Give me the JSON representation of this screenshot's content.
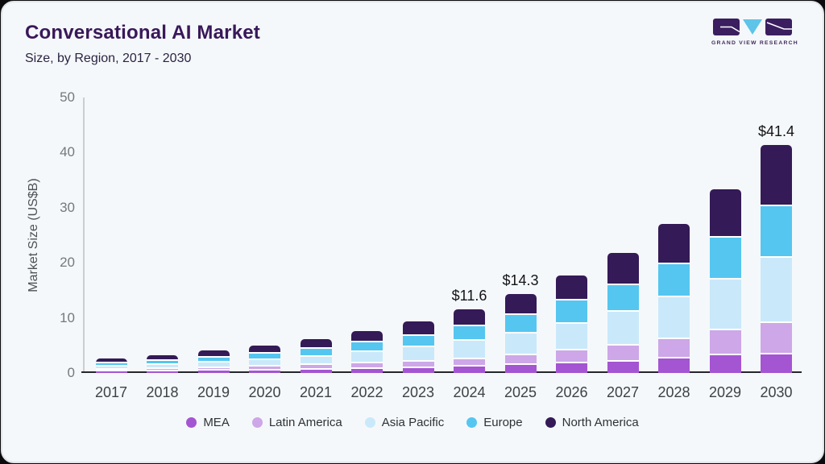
{
  "header": {
    "title": "Conversational AI Market",
    "subtitle": "Size, by Region, 2017 - 2030"
  },
  "logo": {
    "caption": "GRAND VIEW RESEARCH",
    "mark_color": "#3a1e5f",
    "v_color": "#5ec4e8"
  },
  "chart_data": {
    "type": "bar",
    "stacked": true,
    "title": "Conversational AI Market",
    "subtitle": "Size, by Region, 2017 - 2030",
    "xlabel": "",
    "ylabel": "Market Size (US$B)",
    "ylim": [
      0,
      50
    ],
    "yticks": [
      0,
      10,
      20,
      30,
      40,
      50
    ],
    "grid": false,
    "legend_position": "bottom",
    "categories": [
      "2017",
      "2018",
      "2019",
      "2020",
      "2021",
      "2022",
      "2023",
      "2024",
      "2025",
      "2026",
      "2027",
      "2028",
      "2029",
      "2030"
    ],
    "totals": [
      2.6,
      3.2,
      4.1,
      5.0,
      6.2,
      7.6,
      9.4,
      11.6,
      14.3,
      17.7,
      21.8,
      27.0,
      33.4,
      41.4
    ],
    "bar_labels": [
      "",
      "",
      "",
      "",
      "",
      "",
      "",
      "$11.6",
      "$14.3",
      "",
      "",
      "",
      "",
      "$41.4"
    ],
    "series": [
      {
        "name": "MEA",
        "color": "#a455d2",
        "values": [
          0.25,
          0.3,
          0.4,
          0.5,
          0.6,
          0.8,
          0.9,
          1.2,
          1.4,
          1.7,
          2.1,
          2.6,
          3.2,
          3.4
        ]
      },
      {
        "name": "Latin America",
        "color": "#cda7e8",
        "values": [
          0.35,
          0.45,
          0.55,
          0.65,
          0.8,
          0.9,
          1.2,
          1.3,
          1.8,
          2.4,
          2.9,
          3.6,
          4.5,
          5.6
        ]
      },
      {
        "name": "Asia Pacific",
        "color": "#c9e9fa",
        "values": [
          0.6,
          0.75,
          0.95,
          1.25,
          1.6,
          2.1,
          2.6,
          3.3,
          3.9,
          4.8,
          6.1,
          7.5,
          9.3,
          11.9
        ]
      },
      {
        "name": "Europe",
        "color": "#55c6f0",
        "values": [
          0.6,
          0.7,
          0.9,
          1.1,
          1.4,
          1.7,
          2.1,
          2.7,
          3.4,
          4.2,
          4.9,
          6.1,
          7.5,
          9.4
        ]
      },
      {
        "name": "North America",
        "color": "#341a57",
        "values": [
          0.8,
          1.0,
          1.3,
          1.5,
          1.8,
          2.1,
          2.6,
          3.1,
          3.8,
          4.6,
          5.8,
          7.2,
          8.9,
          11.1
        ]
      }
    ]
  }
}
